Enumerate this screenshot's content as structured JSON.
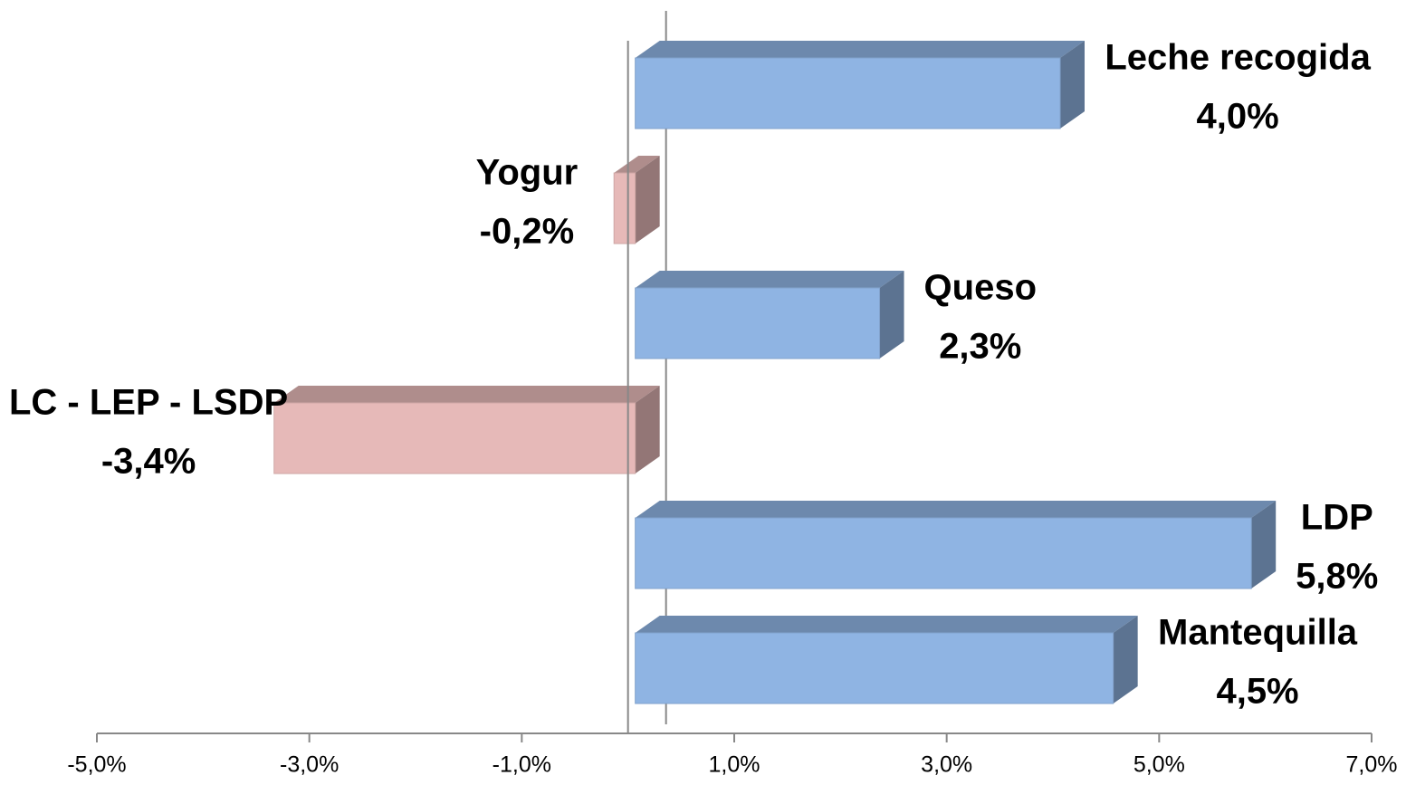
{
  "chart_data": {
    "type": "bar3d_horizontal",
    "categories": [
      "Leche recogida",
      "Yogur",
      "Queso",
      "LC - LEP - LSDP",
      "LDP",
      "Mantequilla"
    ],
    "values": [
      4.0,
      -0.2,
      2.3,
      -3.4,
      5.8,
      4.5
    ],
    "value_labels": [
      "4,0%",
      "-0,2%",
      "2,3%",
      "-3,4%",
      "5,8%",
      "4,5%"
    ],
    "colors": {
      "positive": "#8fb4e3",
      "negative": "#e6b9b8"
    },
    "xlim": [
      -5,
      7
    ],
    "xticks": [
      {
        "value": -5,
        "label": "-5,0%"
      },
      {
        "value": -3,
        "label": "-3,0%"
      },
      {
        "value": -1,
        "label": "-1,0%"
      },
      {
        "value": 1,
        "label": "1,0%"
      },
      {
        "value": 3,
        "label": "3,0%"
      },
      {
        "value": 5,
        "label": "5,0%"
      },
      {
        "value": 7,
        "label": "7,0%"
      }
    ]
  }
}
